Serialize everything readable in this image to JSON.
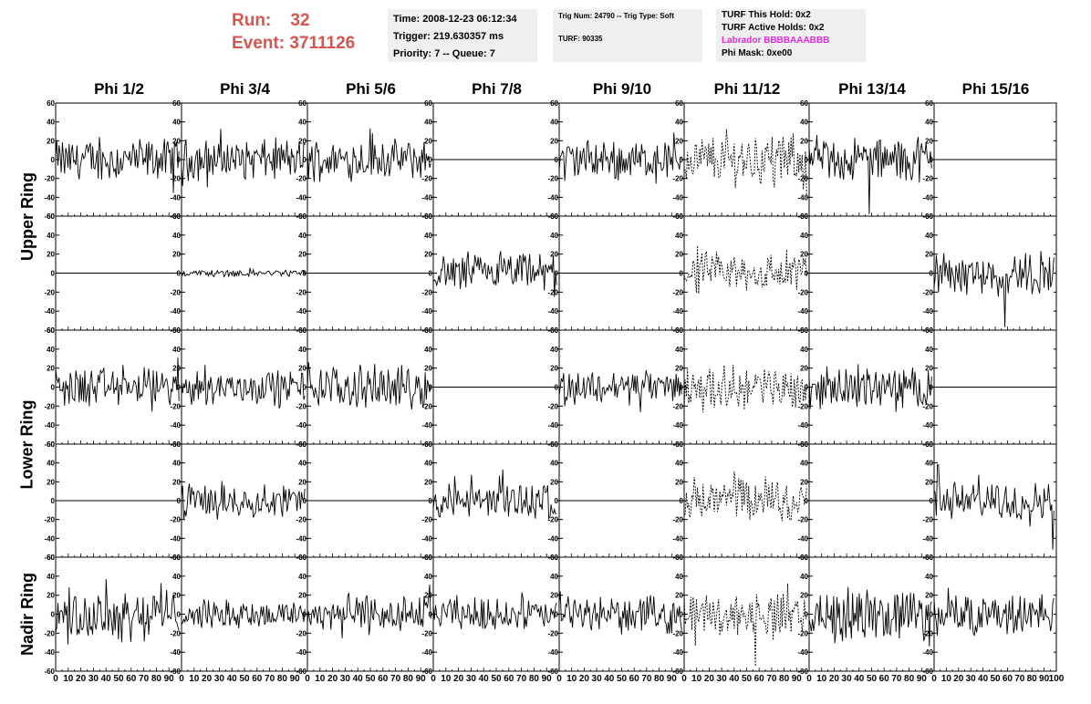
{
  "header": {
    "run_label": "Run:",
    "run_value": "32",
    "event_label": "Event:",
    "event_value": "3711126"
  },
  "info_box_1": {
    "time": "Time: 2008-12-23 06:12:34",
    "trigger": "Trigger: 219.630357 ms",
    "priority": "Priority: 7 -- Queue: 7"
  },
  "info_box_2": {
    "trig": "Trig Num: 24790 -- Trig Type: Soft",
    "turf": "TURF: 90335"
  },
  "info_box_3": {
    "this_hold": "TURF This Hold: 0x2",
    "active_holds": "TURF Active Holds: 0x2",
    "labrador": "Labrador BBBBAAABBB",
    "phi_mask": "Phi Mask: 0xe00"
  },
  "colors": {
    "header_red": "#d9534f",
    "labrador_magenta": "#e22be2",
    "box_bg": "#efefef"
  },
  "chart_data": {
    "type": "line",
    "columns": [
      "Phi 1/2",
      "Phi 3/4",
      "Phi 5/6",
      "Phi 7/8",
      "Phi 9/10",
      "Phi 11/12",
      "Phi 13/14",
      "Phi 15/16"
    ],
    "ring_labels": [
      "Upper Ring",
      "Lower Ring",
      "Nadir Ring"
    ],
    "y_ticks": [
      "60",
      "40",
      "20",
      "0",
      "-20",
      "-40",
      "-60"
    ],
    "ylim": [
      -60,
      60
    ],
    "x_tick_labels": [
      "0",
      "10",
      "20",
      "30",
      "40",
      "50",
      "60",
      "70",
      "80",
      "90",
      "100"
    ],
    "xlim": [
      0,
      100
    ],
    "panels": [
      {
        "name": "upper-1",
        "amplitudes": [
          18,
          18,
          17,
          0,
          17,
          22,
          19,
          0
        ],
        "dashed": [
          false,
          false,
          false,
          false,
          false,
          true,
          false,
          false
        ],
        "spikes": [
          [],
          [],
          [
            [
              50,
              33
            ]
          ],
          [],
          [],
          [],
          [
            [
              48,
              -58
            ]
          ],
          []
        ]
      },
      {
        "name": "upper-2",
        "amplitudes": [
          0,
          3,
          0,
          16,
          0,
          18,
          0,
          18
        ],
        "dashed": [
          false,
          false,
          false,
          false,
          false,
          true,
          false,
          false
        ],
        "spikes": [
          [],
          [],
          [],
          [],
          [],
          [],
          [],
          [
            [
              58,
              -57
            ]
          ]
        ]
      },
      {
        "name": "lower-1",
        "amplitudes": [
          17,
          15,
          18,
          0,
          15,
          18,
          17,
          0
        ],
        "dashed": [
          false,
          false,
          false,
          false,
          false,
          true,
          false,
          false
        ],
        "spikes": [
          [],
          [],
          [],
          [],
          [],
          [],
          [],
          []
        ]
      },
      {
        "name": "lower-2",
        "amplitudes": [
          0,
          15,
          0,
          16,
          0,
          20,
          0,
          16
        ],
        "dashed": [
          false,
          false,
          false,
          false,
          false,
          true,
          false,
          false
        ],
        "spikes": [
          [],
          [],
          [],
          [
            [
              55,
              33
            ]
          ],
          [],
          [],
          [],
          [
            [
              3,
              38
            ],
            [
              97,
              -52
            ]
          ]
        ]
      },
      {
        "name": "nadir",
        "amplitudes": [
          22,
          12,
          17,
          14,
          15,
          18,
          22,
          18
        ],
        "dashed": [
          false,
          false,
          false,
          false,
          false,
          true,
          false,
          false
        ],
        "spikes": [
          [
            [
              40,
              37
            ]
          ],
          [],
          [],
          [],
          [],
          [
            [
              57,
              -55
            ]
          ],
          [],
          []
        ]
      }
    ]
  }
}
